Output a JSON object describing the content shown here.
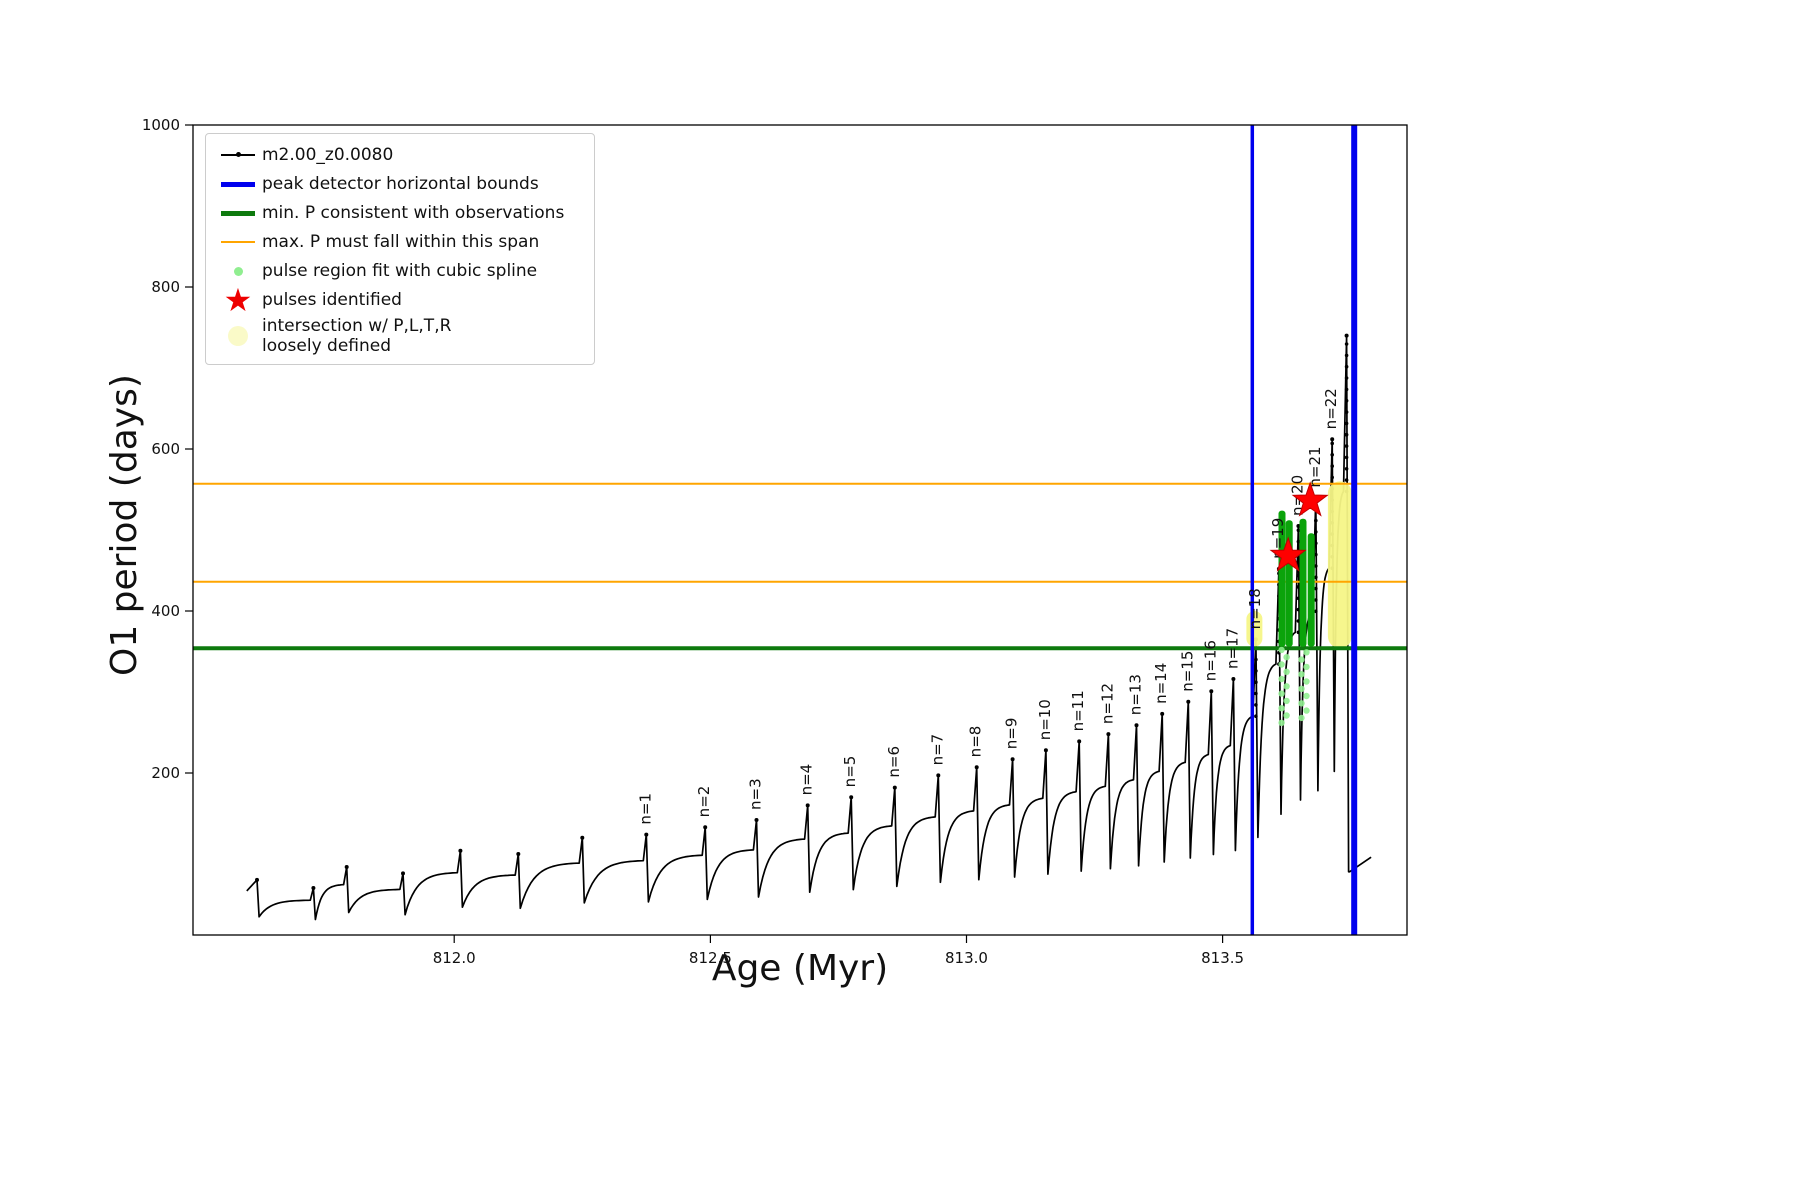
{
  "figure": {
    "xlabel": "Age (Myr)",
    "ylabel": "O1 period (days)",
    "background": "#ffffff"
  },
  "axes": {
    "x_ticks": [
      {
        "v": 812.0,
        "label": "812.0"
      },
      {
        "v": 812.5,
        "label": "812.5"
      },
      {
        "v": 813.0,
        "label": "813.0"
      },
      {
        "v": 813.5,
        "label": "813.5"
      }
    ],
    "y_ticks": [
      {
        "v": 200,
        "label": "200"
      },
      {
        "v": 400,
        "label": "400"
      },
      {
        "v": 600,
        "label": "600"
      },
      {
        "v": 800,
        "label": "800"
      },
      {
        "v": 1000,
        "label": "1000"
      }
    ]
  },
  "legend": {
    "items": [
      {
        "label": "m2.00_z0.0080",
        "marker": "line-dot",
        "color": "#000000"
      },
      {
        "label": "peak detector horizontal bounds",
        "marker": "thick-line",
        "color": "#0000ee"
      },
      {
        "label": "min. P consistent with observations",
        "marker": "thick-line",
        "color": "#0e7a0e"
      },
      {
        "label": "max. P must fall within this span",
        "marker": "thin-line",
        "color": "#ffa500"
      },
      {
        "label": "pulse region fit with cubic spline",
        "marker": "dot",
        "color": "#90ee90"
      },
      {
        "label": "pulses identified",
        "marker": "star",
        "color": "#ee0000"
      },
      {
        "label": "intersection w/ P,L,T,R\nloosely defined",
        "marker": "big-dot",
        "color": "#fafac8"
      }
    ]
  },
  "chart_data": {
    "type": "line",
    "series_name": "m2.00_z0.0080",
    "title": "",
    "xlabel": "Age (Myr)",
    "ylabel": "O1 period (days)",
    "xlim": [
      811.49,
      813.86
    ],
    "ylim": [
      0,
      1000
    ],
    "grid": false,
    "legend_position": "upper-left",
    "curve_color": "#000000",
    "pulses": [
      {
        "age": 811.615,
        "peak": 68
      },
      {
        "age": 811.725,
        "peak": 58
      },
      {
        "age": 811.79,
        "peak": 84
      },
      {
        "age": 811.9,
        "peak": 76
      },
      {
        "age": 812.012,
        "peak": 104
      },
      {
        "age": 812.125,
        "peak": 100
      },
      {
        "age": 812.25,
        "peak": 120
      },
      {
        "age": 812.375,
        "peak": 124,
        "n": "n=1"
      },
      {
        "age": 812.49,
        "peak": 133,
        "n": "n=2"
      },
      {
        "age": 812.59,
        "peak": 142,
        "n": "n=3"
      },
      {
        "age": 812.69,
        "peak": 160,
        "n": "n=4"
      },
      {
        "age": 812.775,
        "peak": 170,
        "n": "n=5"
      },
      {
        "age": 812.86,
        "peak": 182,
        "n": "n=6"
      },
      {
        "age": 812.945,
        "peak": 197,
        "n": "n=7"
      },
      {
        "age": 813.02,
        "peak": 207,
        "n": "n=8"
      },
      {
        "age": 813.09,
        "peak": 217,
        "n": "n=9"
      },
      {
        "age": 813.155,
        "peak": 228,
        "n": "n=10"
      },
      {
        "age": 813.22,
        "peak": 239,
        "n": "n=11"
      },
      {
        "age": 813.277,
        "peak": 248,
        "n": "n=12"
      },
      {
        "age": 813.332,
        "peak": 259,
        "n": "n=13"
      },
      {
        "age": 813.382,
        "peak": 273,
        "n": "n=14"
      },
      {
        "age": 813.433,
        "peak": 288,
        "n": "n=15"
      },
      {
        "age": 813.478,
        "peak": 301,
        "n": "n=16"
      },
      {
        "age": 813.521,
        "peak": 316,
        "n": "n=17"
      },
      {
        "age": 813.565,
        "peak": 365,
        "n": "n=18"
      },
      {
        "age": 813.61,
        "peak": 452,
        "n": "n=19"
      },
      {
        "age": 813.648,
        "peak": 505,
        "n": "n=20"
      },
      {
        "age": 813.682,
        "peak": 540,
        "n": "n=21"
      },
      {
        "age": 813.714,
        "peak": 612,
        "n": "n=22"
      },
      {
        "age": 813.742,
        "peak": 740,
        "drop": 78
      }
    ],
    "tail": [
      [
        813.748,
        78
      ],
      [
        813.79,
        96
      ]
    ],
    "hlines": [
      {
        "y": 354,
        "color": "#0e7a0e",
        "width": 4,
        "name": "min-P-consistent-line"
      },
      {
        "y": 557,
        "color": "#ffa500",
        "width": 2,
        "name": "max-P-span-upper-line"
      },
      {
        "y": 436,
        "color": "#ffa500",
        "width": 2,
        "name": "max-P-span-lower-line"
      }
    ],
    "vlines": [
      {
        "x": 813.558,
        "color": "#0000ee",
        "width": 3.5,
        "name": "peak-detector-left-bound"
      },
      {
        "x": 813.757,
        "color": "#0000ee",
        "width": 6,
        "name": "peak-detector-right-bound"
      }
    ],
    "stars": [
      {
        "x": 813.628,
        "y": 468
      },
      {
        "x": 813.671,
        "y": 536
      }
    ],
    "star_color": "#ff0000",
    "spline_bar_color": "#0ba30b",
    "spline_bars": [
      {
        "x": 813.616,
        "y0": 356,
        "y1": 524
      },
      {
        "x": 813.63,
        "y0": 356,
        "y1": 512
      },
      {
        "x": 813.657,
        "y0": 356,
        "y1": 514
      },
      {
        "x": 813.673,
        "y0": 356,
        "y1": 496
      }
    ],
    "spline_dot_color": "#90ee90",
    "spline_dot_columns": [
      {
        "x": 813.62,
        "y0": 262,
        "y1": 352
      },
      {
        "x": 813.659,
        "y0": 268,
        "y1": 352
      }
    ],
    "yellow_color": "#f6f687",
    "yellow_regions": [
      {
        "x": 813.562,
        "y0": 356,
        "y1": 400,
        "w": 8
      },
      {
        "x": 813.729,
        "y0": 354,
        "y1": 560,
        "w": 12
      }
    ]
  }
}
